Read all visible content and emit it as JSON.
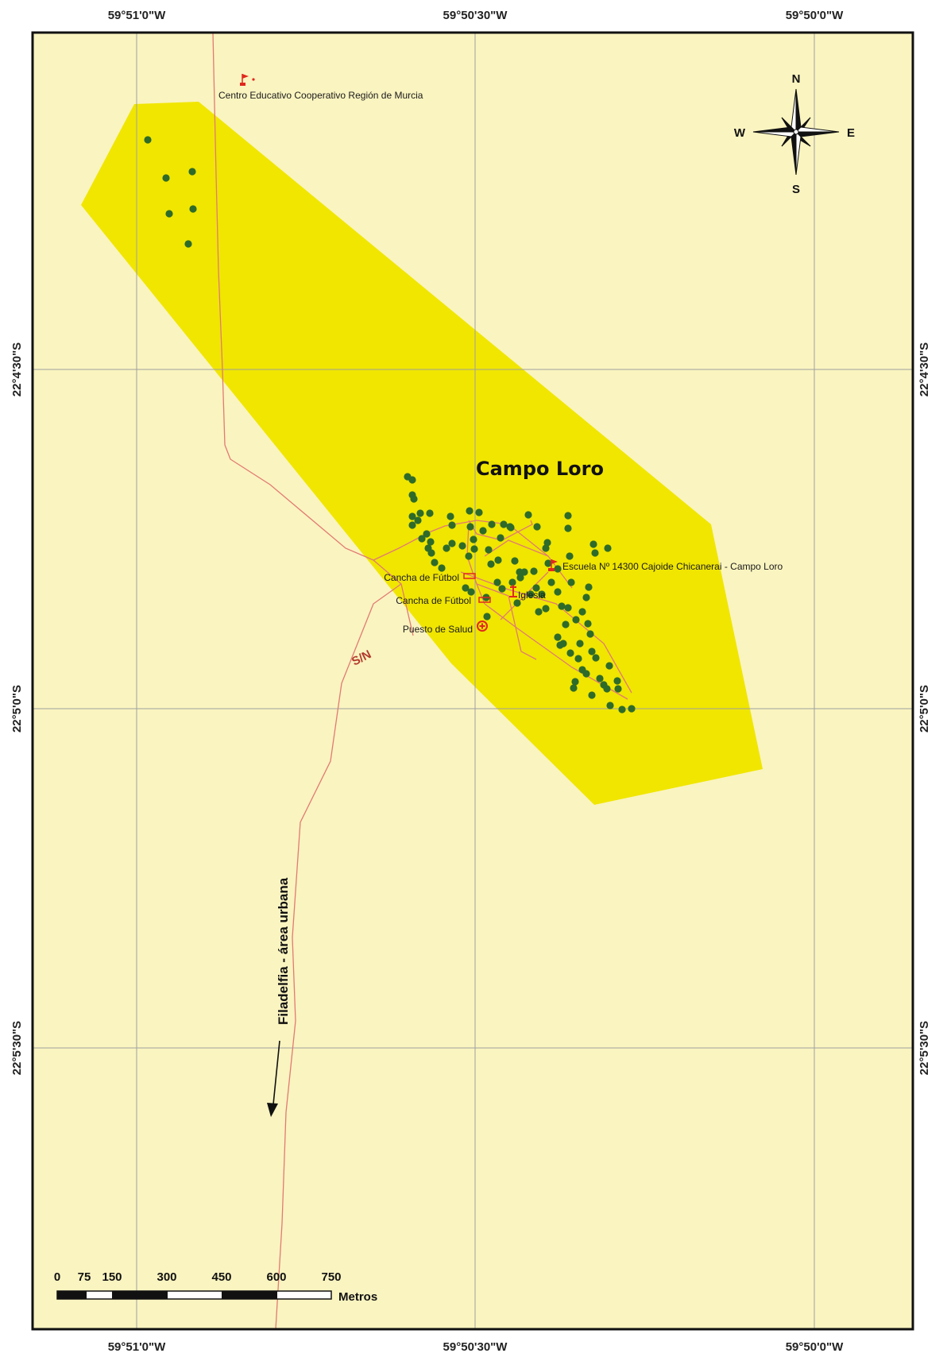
{
  "map": {
    "title": "Campo Loro",
    "colors": {
      "background": "#faf4c0",
      "area": "#f0e600",
      "roads": "#e27a72",
      "houses": "#2e6b2a",
      "symbols": "#e0281e",
      "grid": "#9a9a9a",
      "frame": "#111111"
    },
    "lon_labels": [
      "59°51'0\"W",
      "59°50'30\"W",
      "59°50'0\"W"
    ],
    "lat_labels": [
      "22°4'30\"S",
      "22°5'0\"S",
      "22°5'30\"S"
    ],
    "labels": {
      "school_north": "Centro Educativo Cooperativo Región de Murcia",
      "school_campo": "Escuela Nº 14300 Cajoide Chicanerai - Campo Loro",
      "cancha1": "Cancha de Fútbol",
      "cancha2": "Cancha de Fútbol",
      "iglesia": "Iglesia",
      "puesto": "Puesto de Salud",
      "road_sn": "S/N",
      "direction": "Filadelfia - área urbana"
    },
    "compass": {
      "n": "N",
      "s": "S",
      "e": "E",
      "w": "W"
    },
    "scale": {
      "ticks": [
        "0",
        "75",
        "150",
        "300",
        "450",
        "600",
        "750"
      ],
      "unit": "Metros"
    },
    "icons": [
      "flag-icon",
      "church-icon",
      "health-cross-icon",
      "compass-rose-icon",
      "scale-bar-icon"
    ]
  }
}
